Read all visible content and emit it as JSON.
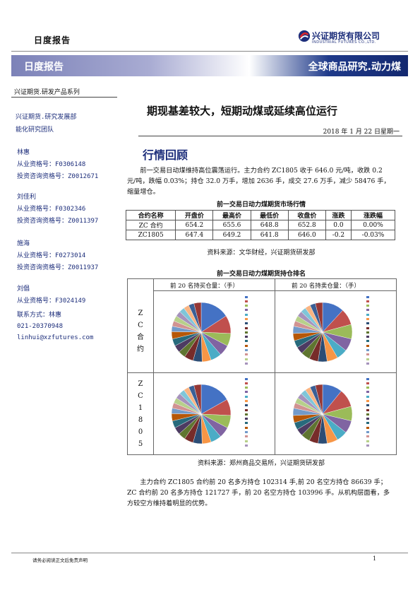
{
  "header": {
    "report_label": "日度报告",
    "logo": {
      "cn": "兴证期货有限公司",
      "en": "INDUSTRIAL FUTURES CO.,LTD."
    },
    "banner_left": "日度报告",
    "banner_right": "全球商品研究.动力煤"
  },
  "sidebar": {
    "series": "兴证期货.研发产品系列",
    "dept": "兴证期货.研究发展部",
    "team": "能化研究团队",
    "analysts": [
      {
        "name": "林惠",
        "qual": "从业资格号：F0306148",
        "consult": "投资咨询资格号：Z0012671"
      },
      {
        "name": "刘佳利",
        "qual": "从业资格号：F0302346",
        "consult": "投资咨询资格号：Z0011397"
      },
      {
        "name": "施海",
        "qual": "从业资格号：F0273014",
        "consult": "投资咨询资格号：Z0011937"
      },
      {
        "name": "刘倡",
        "qual": "从业资格号：F3024149",
        "consult": ""
      }
    ],
    "contact": {
      "label": "联系方式：林惠",
      "phone": "021-20370948",
      "email": "linhui@xzfutures.com"
    }
  },
  "main": {
    "headline": "期现基差较大，短期动煤或延续高位运行",
    "date": "2018 年 1 月 22 日星期一",
    "section_title": "行情回顾",
    "para1": "前一交易日动煤维持高位震荡运行。主力合约 ZC1805 收于 646.0 元/吨，收跌 0.2 元/吨，跌幅 0.03%；持仓 32.0 万手，增加 2636 手，成交 27.6 万手，减少 58476 手，缩量增仓。",
    "table_title": "前一交易日动力煤期货市场行情",
    "table": {
      "headers": [
        "合约名称",
        "开盘价",
        "最高价",
        "最低价",
        "收盘价",
        "涨跌",
        "涨跌幅"
      ],
      "rows": [
        [
          "ZC 合约",
          "654.2",
          "655.6",
          "648.8",
          "652.8",
          "0.0",
          "0.00%"
        ],
        [
          "ZC1805",
          "647.4",
          "649.2",
          "641.8",
          "646.0",
          "-0.2",
          "-0.03%"
        ]
      ]
    },
    "table_source": "资料来源：文华财经，兴证期货研发部",
    "pie_title": "前一交易日动力煤期货持仓排名",
    "pie_col_headers": [
      "前 20 名持买仓量：（手）",
      "前 20 名持卖仓量：（手）"
    ],
    "pie_row_labels": [
      [
        "Z",
        "C",
        "合",
        "约"
      ],
      [
        "Z",
        "C",
        "1",
        "8",
        "0",
        "5"
      ]
    ],
    "pie_source": "资料来源：郑州商品交易所，兴证期货研发部",
    "para2": "主力合约 ZC1805 合约前 20 名多方持仓 102314 手,前 20 名空方持仓 86639 手；ZC 合约前 20 名多方持仓 121727 手，前 20 名空方持仓 103996 手。从机构层面看，多方较空方维持着明显的优势。"
  },
  "footer": {
    "disclaimer": "请务必阅读正文后免责声明",
    "page": "1"
  },
  "pie_colors": [
    "#4472c4",
    "#c0504d",
    "#9bbb59",
    "#8064a2",
    "#4bacc6",
    "#f79646",
    "#2c4d75",
    "#772c2a",
    "#5f7530",
    "#4d3b62",
    "#276a7c",
    "#b65708",
    "#729aca",
    "#d19392",
    "#b7d08a",
    "#a693bc",
    "#7fc6d9",
    "#f9b482",
    "#3a5f96",
    "#953735"
  ]
}
